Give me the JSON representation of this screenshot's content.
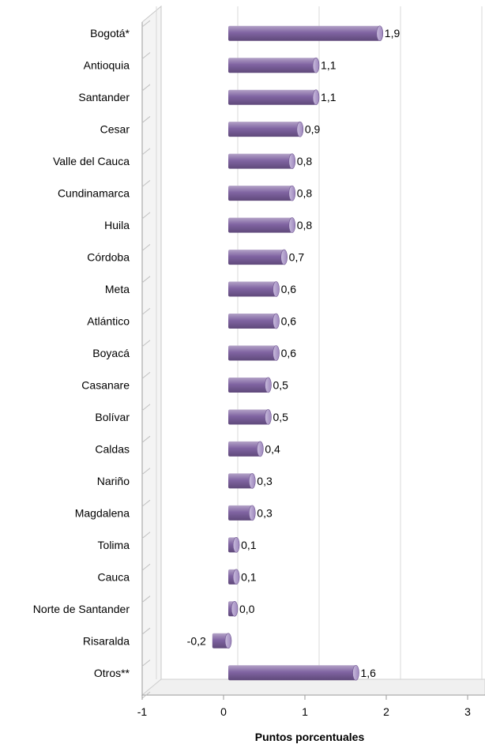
{
  "chart_data": {
    "type": "bar",
    "orientation": "horizontal",
    "categories": [
      "Bogotá*",
      "Antioquia",
      "Santander",
      "Cesar",
      "Valle del Cauca",
      "Cundinamarca",
      "Huila",
      "Córdoba",
      "Meta",
      "Atlántico",
      "Boyacá",
      "Casanare",
      "Bolívar",
      "Caldas",
      "Nariño",
      "Magdalena",
      "Tolima",
      "Cauca",
      "Norte de Santander",
      "Risaralda",
      "Otros**"
    ],
    "values": [
      1.9,
      1.1,
      1.1,
      0.9,
      0.8,
      0.8,
      0.8,
      0.7,
      0.6,
      0.6,
      0.6,
      0.5,
      0.5,
      0.4,
      0.3,
      0.3,
      0.1,
      0.1,
      0.0,
      -0.2,
      1.6
    ],
    "value_labels": [
      "1,9",
      "1,1",
      "1,1",
      "0,9",
      "0,8",
      "0,8",
      "0,8",
      "0,7",
      "0,6",
      "0,6",
      "0,6",
      "0,5",
      "0,5",
      "0,4",
      "0,3",
      "0,3",
      "0,1",
      "0,1",
      "0,0",
      "-0,2",
      "1,6"
    ],
    "xlabel": "Puntos porcentuales",
    "ylabel": "",
    "xlim": [
      -1,
      3
    ],
    "xticks": [
      -1,
      0,
      1,
      2,
      3
    ],
    "xtick_labels": [
      "-1",
      "0",
      "1",
      "2",
      "3"
    ],
    "grid": "vertical",
    "bar_color": "#8064a2"
  }
}
